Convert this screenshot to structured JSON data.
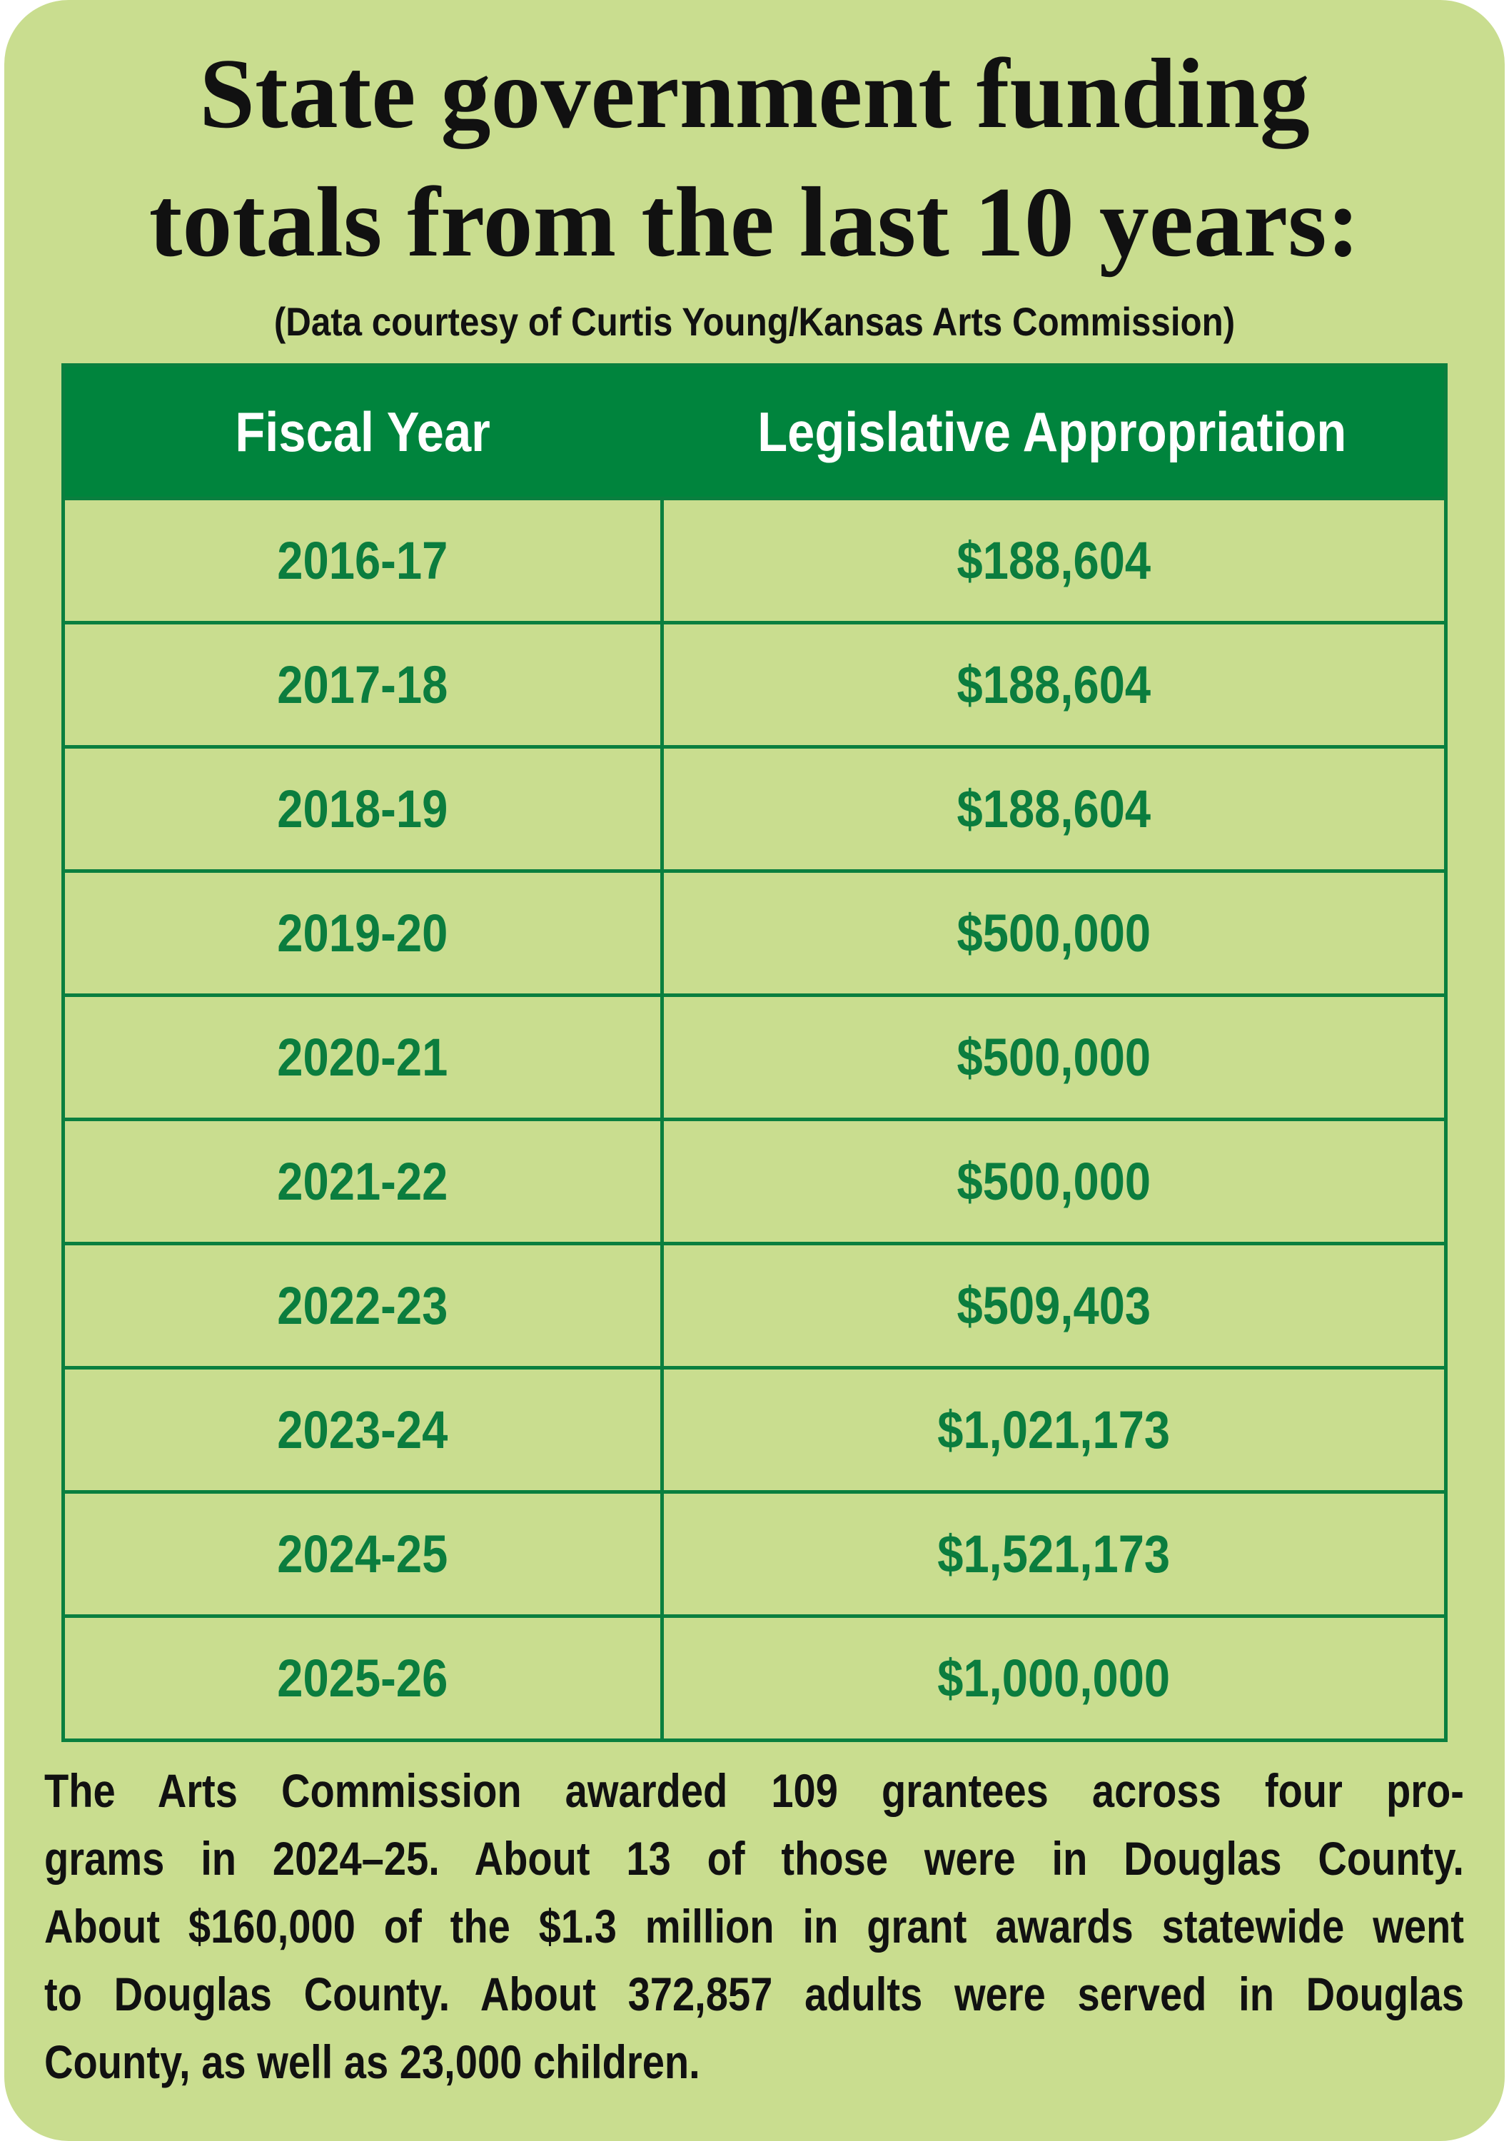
{
  "header": {
    "title": [
      "State government funding",
      "totals from the last 10 years:"
    ],
    "subtitle": "(Data courtesy of Curtis Young/Kansas Arts Commission)"
  },
  "table": {
    "columns": [
      "Fiscal Year",
      "Legislative Appropriation"
    ],
    "rows": [
      [
        "2016-17",
        "$188,604"
      ],
      [
        "2017-18",
        "$188,604"
      ],
      [
        "2018-19",
        "$188,604"
      ],
      [
        "2019-20",
        "$500,000"
      ],
      [
        "2020-21",
        "$500,000"
      ],
      [
        "2021-22",
        "$500,000"
      ],
      [
        "2022-23",
        "$509,403"
      ],
      [
        "2023-24",
        "$1,021,173"
      ],
      [
        "2024-25",
        "$1,521,173"
      ],
      [
        "2025-26",
        "$1,000,000"
      ]
    ]
  },
  "footnote": [
    "The Arts Commission awarded 109 grantees across four pro-",
    "grams in 2024–25. About 13 of those were in Douglas County.",
    "About $160,000 of the $1.3 million in grant awards statewide went",
    "to Douglas County. About 372,857 adults were served in Douglas",
    "County, as well as 23,000 children."
  ]
}
